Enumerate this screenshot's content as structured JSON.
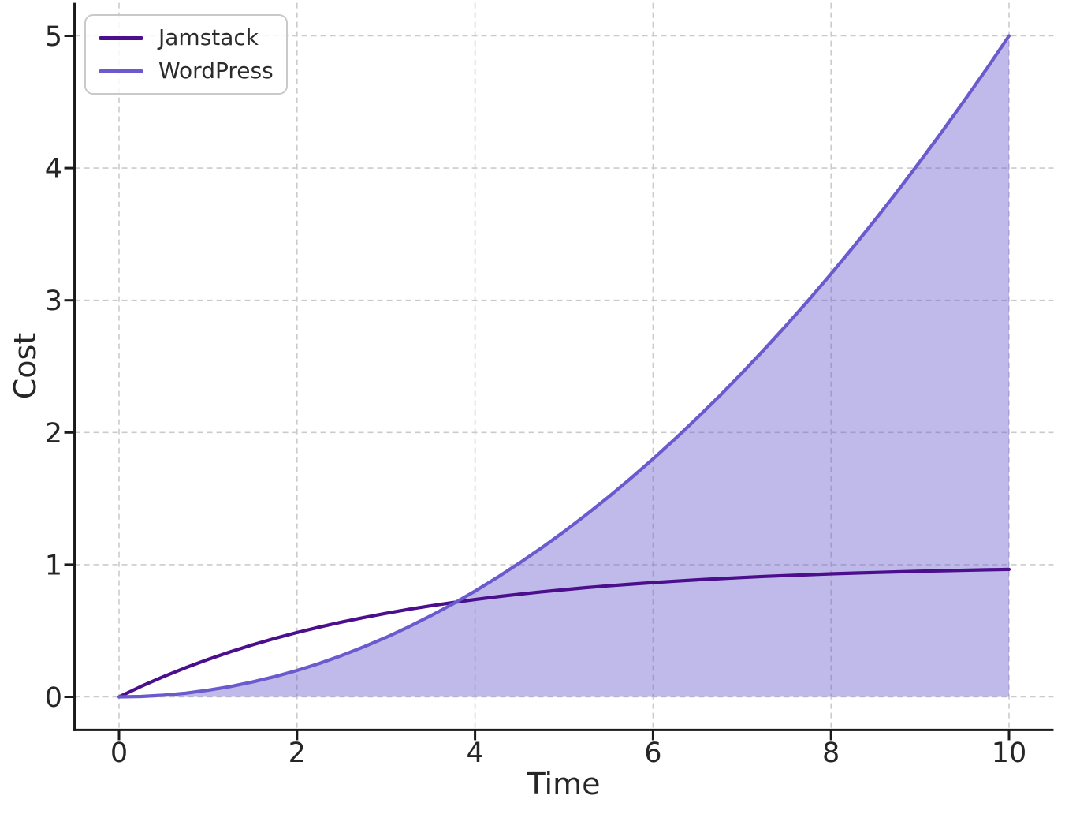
{
  "chart_data": {
    "type": "line",
    "title": "",
    "xlabel": "Time",
    "ylabel": "Cost",
    "xlim": [
      -0.5,
      10.5
    ],
    "ylim": [
      -0.25,
      5.25
    ],
    "xticks": [
      0,
      2,
      4,
      6,
      8,
      10
    ],
    "yticks": [
      0,
      1,
      2,
      3,
      4,
      5
    ],
    "grid": {
      "visible": true,
      "style": "dashed"
    },
    "legend": {
      "position": "upper left",
      "labels": [
        "Jamstack",
        "WordPress"
      ]
    },
    "colors": {
      "grid": "#cbcbcb",
      "axis": "#1a1a1a",
      "text": "#262626",
      "legend_border": "#c9c9c9",
      "legend_bg": "rgba(255,255,255,0.85)"
    },
    "x": [
      0,
      0.25,
      0.5,
      0.75,
      1,
      1.25,
      1.5,
      1.75,
      2,
      2.25,
      2.5,
      2.75,
      3,
      3.25,
      3.5,
      3.75,
      4,
      4.25,
      4.5,
      4.75,
      5,
      5.25,
      5.5,
      5.75,
      6,
      6.25,
      6.5,
      6.75,
      7,
      7.25,
      7.5,
      7.75,
      8,
      8.25,
      8.5,
      8.75,
      9,
      9.25,
      9.5,
      9.75,
      10
    ],
    "series": [
      {
        "name": "Jamstack",
        "color": "#4b0e8c",
        "line_width": 4.2,
        "fill": false,
        "values": [
          0,
          0.08,
          0.1535,
          0.2212,
          0.2835,
          0.3408,
          0.3935,
          0.442,
          0.4866,
          0.5276,
          0.5654,
          0.6001,
          0.6321,
          0.6615,
          0.6886,
          0.7135,
          0.7364,
          0.7575,
          0.7769,
          0.7948,
          0.8111,
          0.8262,
          0.8401,
          0.8529,
          0.8647,
          0.8755,
          0.8854,
          0.8946,
          0.903,
          0.9108,
          0.9179,
          0.9245,
          0.9305,
          0.9361,
          0.9412,
          0.9459,
          0.9502,
          0.9542,
          0.9579,
          0.9612,
          0.9643
        ]
      },
      {
        "name": "WordPress",
        "color": "#6a5acd",
        "line_width": 4.2,
        "fill": true,
        "fill_color": "rgba(106,90,205,0.42)",
        "baseline": 0,
        "values": [
          0,
          0.0031,
          0.0125,
          0.0281,
          0.05,
          0.0781,
          0.1125,
          0.1531,
          0.2,
          0.2531,
          0.3125,
          0.3781,
          0.45,
          0.5281,
          0.6125,
          0.7031,
          0.8,
          0.9031,
          1.0125,
          1.1281,
          1.25,
          1.3781,
          1.5125,
          1.6531,
          1.8,
          1.9531,
          2.1125,
          2.2781,
          2.45,
          2.6281,
          2.8125,
          3.0031,
          3.2,
          3.4031,
          3.6125,
          3.8281,
          4.05,
          4.2781,
          4.5125,
          4.7531,
          5
        ]
      }
    ]
  }
}
